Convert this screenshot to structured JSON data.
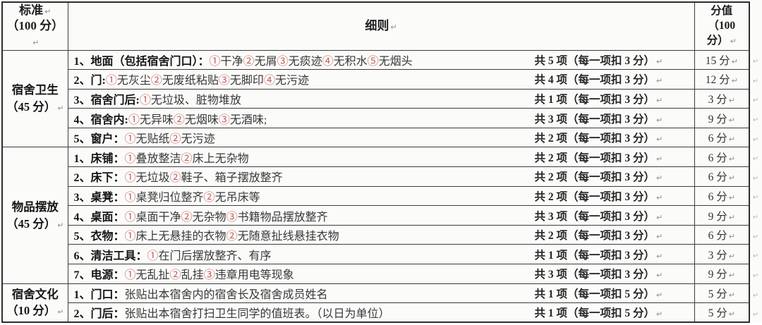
{
  "pilcrow": "↵",
  "colors": {
    "circled_number": "#c4605c",
    "border": "#3d3d3d",
    "text": "#222222"
  },
  "header": {
    "col1_line1": "标准",
    "col1_line2": "（100 分）",
    "col2": "细则",
    "col3": "分值 （100 分）"
  },
  "groups": [
    {
      "line1": "宿舍卫生",
      "line2": "（45 分）"
    },
    {
      "line1": "物品摆放",
      "line2": "（45 分）"
    },
    {
      "line1": "宿舍文化",
      "line2": "（10 分）"
    }
  ],
  "rows": [
    {
      "label": "1、地面（包括宿舍门口）：",
      "items": "①干净②无屑③无痰迹④无积水⑤无烟头",
      "count": "共 5 项（每一项扣 3 分）",
      "score": "15 分"
    },
    {
      "label": "2、门:",
      "items": "①无灰尘②无废纸粘贴③无脚印④无污迹",
      "count": "共 4 项（每一项扣 3 分）",
      "score": "12 分"
    },
    {
      "label": "3、宿舍门后:",
      "items": "①无垃圾、脏物堆放",
      "count": "共 1 项（每一项扣 3 分）",
      "score": "3 分"
    },
    {
      "label": "4、宿舍内:",
      "items": "①无异味②无烟味③无酒味;",
      "count": "共 3 项（每一项扣 3 分）",
      "score": "9 分"
    },
    {
      "label": "5、窗户：",
      "items": "①无贴纸②无污迹",
      "count": "共 2 项（每一项扣 3 分）",
      "score": "6 分"
    },
    {
      "label": "1、床铺：",
      "items": "①叠放整洁②床上无杂物",
      "count": "共 2 项（每一项扣 3 分）",
      "score": "6 分"
    },
    {
      "label": "2、床下：",
      "items": "①无垃圾②鞋子、箱子摆放整齐",
      "count": "共 2 项（每一项扣 3 分）",
      "score": "6 分"
    },
    {
      "label": "3、桌凳：",
      "items": "①桌凳归位整齐②无吊床等",
      "count": "共 2 项（每一项扣 3 分）",
      "score": "6 分"
    },
    {
      "label": "4、桌面：",
      "items": "①桌面干净②无杂物③书籍物品摆放整齐",
      "count": "共 3 项（每一项扣 3 分）",
      "score": "9 分"
    },
    {
      "label": "5、衣物：",
      "items": "①床上无悬挂的衣物②无随意扯线悬挂衣物",
      "count": "共 2 项（每一项扣 3 分）",
      "score": "6 分"
    },
    {
      "label": "6、清洁工具：",
      "items": "①在门后摆放整齐、有序",
      "count": "共 1 项（每一项扣 3 分）",
      "score": "3 分"
    },
    {
      "label": "7、电源：",
      "items": "①无乱扯②乱挂③违章用电等现象",
      "count": "共 3 项（每一项扣 3 分）",
      "score": "9 分"
    },
    {
      "label": "1、门口：",
      "items": "张贴出本宿舍内的宿舍长及宿舍成员姓名",
      "count": "共 1 项（每一项扣 5 分）",
      "score": "5 分"
    },
    {
      "label": "2、门后：",
      "items": "张贴出本宿舍打扫卫生同学的值班表。（以日为单位）",
      "count": "共 1 项（每一项扣 5 分）",
      "score": "5 分"
    }
  ]
}
